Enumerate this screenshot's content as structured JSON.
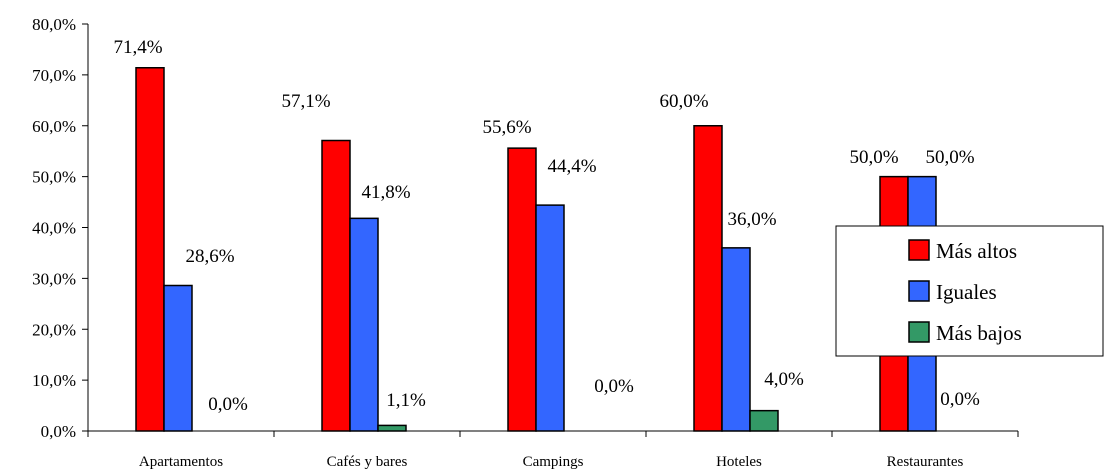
{
  "chart_data": {
    "type": "bar",
    "categories": [
      "Apartamentos",
      "Cafés y bares",
      "Campings",
      "Hoteles",
      "Restaurantes"
    ],
    "series": [
      {
        "name": "Más altos",
        "color": "#ff0000",
        "values": [
          71.4,
          57.1,
          55.6,
          60.0,
          50.0
        ],
        "labels": [
          "71,4%",
          "57,1%",
          "55,6%",
          "60,0%",
          "50,0%"
        ]
      },
      {
        "name": "Iguales",
        "color": "#3366ff",
        "values": [
          28.6,
          41.8,
          44.4,
          36.0,
          50.0
        ],
        "labels": [
          "28,6%",
          "41,8%",
          "44,4%",
          "36,0%",
          "50,0%"
        ]
      },
      {
        "name": "Más bajos",
        "color": "#339966",
        "values": [
          0.0,
          1.1,
          0.0,
          4.0,
          0.0
        ],
        "labels": [
          "0,0%",
          "1,1%",
          "0,0%",
          "4,0%",
          "0,0%"
        ]
      }
    ],
    "yticks": [
      "0,0%",
      "10,0%",
      "20,0%",
      "30,0%",
      "40,0%",
      "50,0%",
      "60,0%",
      "70,0%",
      "80,0%"
    ],
    "ylim": [
      0,
      80
    ],
    "grid": false,
    "legend_position": "right"
  }
}
